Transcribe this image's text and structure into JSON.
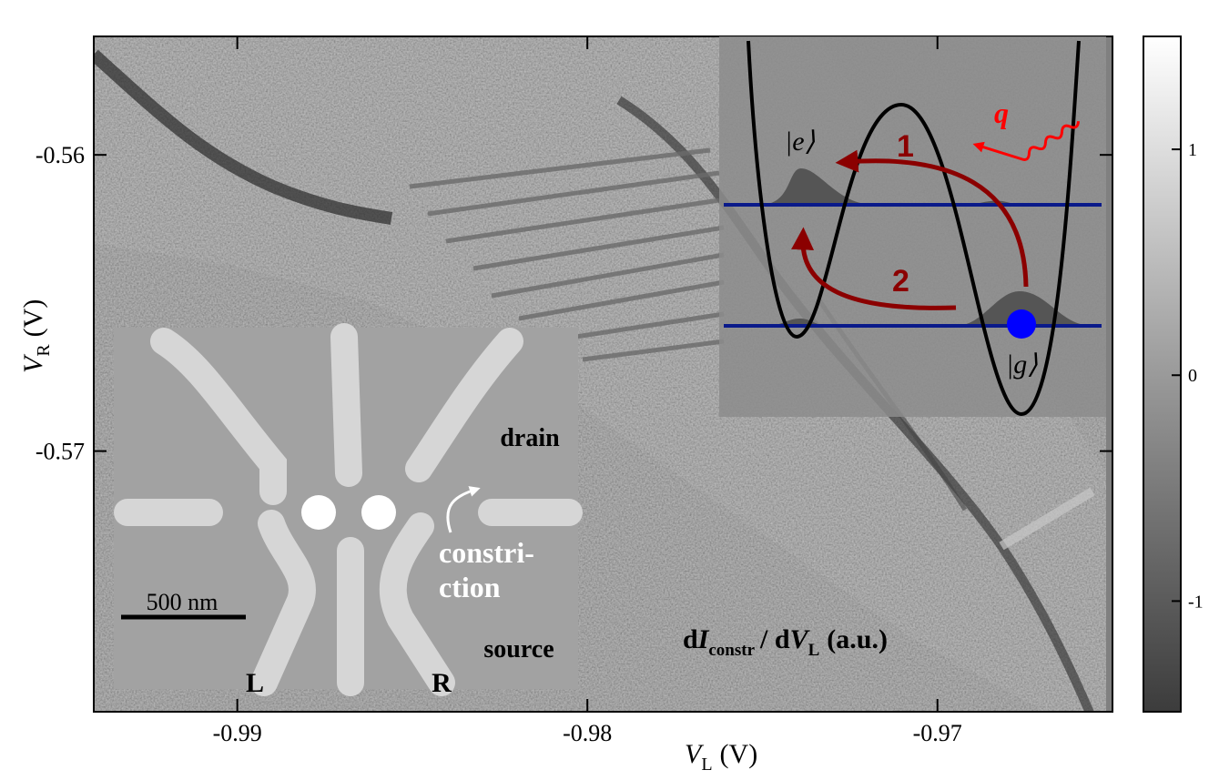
{
  "chart_data": {
    "type": "heatmap",
    "xlabel": {
      "main": "V",
      "sub": "L",
      "unit": "(V)"
    },
    "ylabel": {
      "main": "V",
      "sub": "R",
      "unit": "(V)"
    },
    "xlim": [
      -0.9941,
      -0.965
    ],
    "xticks": [
      -0.99,
      -0.98,
      -0.97
    ],
    "ylim": [
      -0.5788,
      -0.556
    ],
    "yticks": [
      -0.56,
      -0.57
    ],
    "clim": [
      -1.49,
      1.5
    ],
    "cticks": [
      1,
      0,
      -1
    ],
    "colorbar_label": {
      "d1": "d",
      "I": "I",
      "sub1": "constr",
      "mid": "/ d",
      "V": "V",
      "sub2": "L",
      "unit": "(a.u.)"
    },
    "sem_inset": {
      "drain": "drain",
      "constriction": [
        "constri-",
        "ction"
      ],
      "source": "source",
      "scale": "500 nm",
      "left": "L",
      "right": "R"
    },
    "level_inset": {
      "excited": "|e⟩",
      "ground": "|g⟩",
      "path1": "1",
      "path2": "2",
      "photon": "q"
    }
  }
}
